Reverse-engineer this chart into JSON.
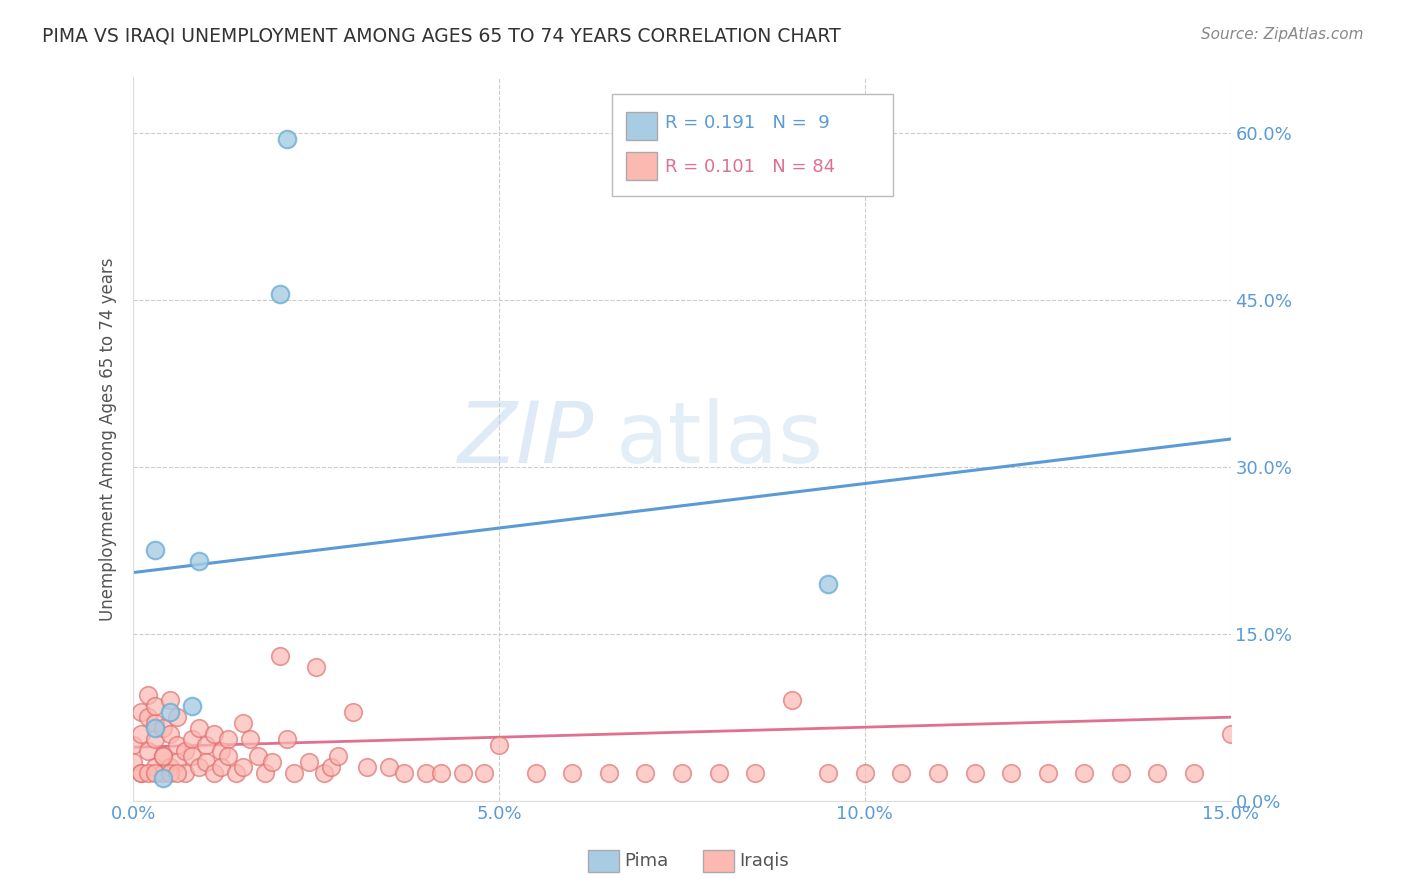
{
  "title": "PIMA VS IRAQI UNEMPLOYMENT AMONG AGES 65 TO 74 YEARS CORRELATION CHART",
  "source_text": "Source: ZipAtlas.com",
  "ylabel": "Unemployment Among Ages 65 to 74 years",
  "xlim": [
    0.0,
    0.15
  ],
  "ylim": [
    0.0,
    0.65
  ],
  "xticks": [
    0.0,
    0.05,
    0.1,
    0.15
  ],
  "xtick_labels": [
    "0.0%",
    "5.0%",
    "10.0%",
    "15.0%"
  ],
  "yticks": [
    0.0,
    0.15,
    0.3,
    0.45,
    0.6
  ],
  "ytick_labels": [
    "0.0%",
    "15.0%",
    "30.0%",
    "45.0%",
    "60.0%"
  ],
  "pima_color": "#a8cce4",
  "pima_edge_color": "#6baed6",
  "iraqis_color": "#fcb9b2",
  "iraqis_edge_color": "#e07070",
  "blue_line_color": "#5b9bd5",
  "pink_line_color": "#e07090",
  "pima_R": 0.191,
  "pima_N": 9,
  "iraqis_R": 0.101,
  "iraqis_N": 84,
  "background_color": "#ffffff",
  "watermark_zip": "ZIP",
  "watermark_atlas": "atlas",
  "pima_x": [
    0.021,
    0.02,
    0.003,
    0.009,
    0.003,
    0.005,
    0.004,
    0.008,
    0.095
  ],
  "pima_y": [
    0.595,
    0.455,
    0.225,
    0.215,
    0.065,
    0.08,
    0.02,
    0.085,
    0.195
  ],
  "iraqis_x": [
    0.0,
    0.0,
    0.001,
    0.001,
    0.001,
    0.002,
    0.002,
    0.002,
    0.003,
    0.003,
    0.003,
    0.003,
    0.004,
    0.004,
    0.004,
    0.005,
    0.005,
    0.005,
    0.006,
    0.006,
    0.006,
    0.007,
    0.007,
    0.008,
    0.008,
    0.009,
    0.009,
    0.01,
    0.01,
    0.011,
    0.011,
    0.012,
    0.012,
    0.013,
    0.013,
    0.014,
    0.015,
    0.015,
    0.016,
    0.017,
    0.018,
    0.019,
    0.02,
    0.021,
    0.022,
    0.024,
    0.025,
    0.026,
    0.027,
    0.028,
    0.03,
    0.032,
    0.035,
    0.037,
    0.04,
    0.042,
    0.045,
    0.048,
    0.05,
    0.055,
    0.06,
    0.065,
    0.07,
    0.075,
    0.08,
    0.085,
    0.09,
    0.095,
    0.1,
    0.105,
    0.11,
    0.115,
    0.12,
    0.125,
    0.13,
    0.135,
    0.14,
    0.145,
    0.15,
    0.001,
    0.002,
    0.003,
    0.004,
    0.005,
    0.006
  ],
  "iraqis_y": [
    0.05,
    0.035,
    0.06,
    0.08,
    0.025,
    0.075,
    0.095,
    0.045,
    0.07,
    0.055,
    0.03,
    0.085,
    0.04,
    0.065,
    0.025,
    0.09,
    0.03,
    0.06,
    0.05,
    0.035,
    0.075,
    0.045,
    0.025,
    0.055,
    0.04,
    0.065,
    0.03,
    0.05,
    0.035,
    0.06,
    0.025,
    0.045,
    0.03,
    0.055,
    0.04,
    0.025,
    0.07,
    0.03,
    0.055,
    0.04,
    0.025,
    0.035,
    0.13,
    0.055,
    0.025,
    0.035,
    0.12,
    0.025,
    0.03,
    0.04,
    0.08,
    0.03,
    0.03,
    0.025,
    0.025,
    0.025,
    0.025,
    0.025,
    0.05,
    0.025,
    0.025,
    0.025,
    0.025,
    0.025,
    0.025,
    0.025,
    0.09,
    0.025,
    0.025,
    0.025,
    0.025,
    0.025,
    0.025,
    0.025,
    0.025,
    0.025,
    0.025,
    0.025,
    0.06,
    0.025,
    0.025,
    0.025,
    0.04,
    0.025,
    0.025
  ],
  "legend_R_color": "#5b9bd5",
  "legend_N_pima_color": "#5b9bd5",
  "legend_N_iraqis_color": "#e07090",
  "legend_iraqis_color": "#e07090"
}
